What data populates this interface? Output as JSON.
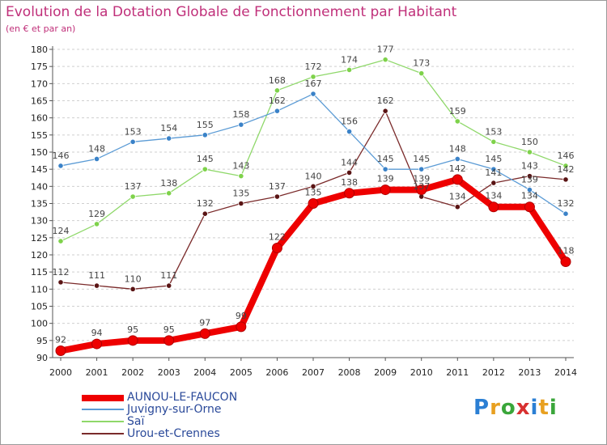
{
  "header": {
    "title": "Evolution de la Dotation Globale de Fonctionnement par Habitant",
    "subtitle": "(en € et par an)"
  },
  "brand": {
    "letters": [
      "P",
      "r",
      "o",
      "x",
      "i",
      "t",
      "i"
    ],
    "colors": [
      "#2b7fd4",
      "#e8a020",
      "#3aa63a",
      "#d83030",
      "#2b7fd4",
      "#e8a020",
      "#3aa63a"
    ]
  },
  "chart_data": {
    "type": "line",
    "title": "Evolution de la Dotation Globale de Fonctionnement par Habitant",
    "subtitle": "(en € et par an)",
    "xlabel": "",
    "ylabel": "",
    "x": [
      "2000",
      "2001",
      "2002",
      "2003",
      "2004",
      "2005",
      "2006",
      "2007",
      "2008",
      "2009",
      "2010",
      "2011",
      "2012",
      "2013",
      "2014"
    ],
    "ylim": [
      90,
      180
    ],
    "yticks": [
      90,
      95,
      100,
      105,
      110,
      115,
      120,
      125,
      130,
      135,
      140,
      145,
      150,
      155,
      160,
      165,
      170,
      175,
      180
    ],
    "grid": "horizontal dashed",
    "legend": "bottom-left",
    "series": [
      {
        "name": "AUNOU-LE-FAUCON",
        "color": "#ee0000",
        "markerColor": "#ee0000",
        "bold": true,
        "values": [
          92,
          94,
          95,
          95,
          97,
          99,
          122,
          135,
          138,
          139,
          139,
          142,
          134,
          134,
          118
        ]
      },
      {
        "name": "Juvigny-sur-Orne",
        "color": "#5b9bd5",
        "markerColor": "#3a82c8",
        "bold": false,
        "values": [
          146,
          148,
          153,
          154,
          155,
          158,
          162,
          167,
          156,
          145,
          145,
          148,
          145,
          139,
          132
        ]
      },
      {
        "name": "Saï",
        "color": "#8fd86a",
        "markerColor": "#7ed24a",
        "bold": false,
        "values": [
          124,
          129,
          137,
          138,
          145,
          143,
          168,
          172,
          174,
          177,
          173,
          159,
          153,
          150,
          146
        ]
      },
      {
        "name": "Urou-et-Crennes",
        "color": "#7a2a2a",
        "markerColor": "#5a1414",
        "bold": false,
        "values": [
          112,
          111,
          110,
          111,
          132,
          135,
          137,
          140,
          144,
          162,
          137,
          134,
          141,
          143,
          142
        ]
      }
    ]
  }
}
